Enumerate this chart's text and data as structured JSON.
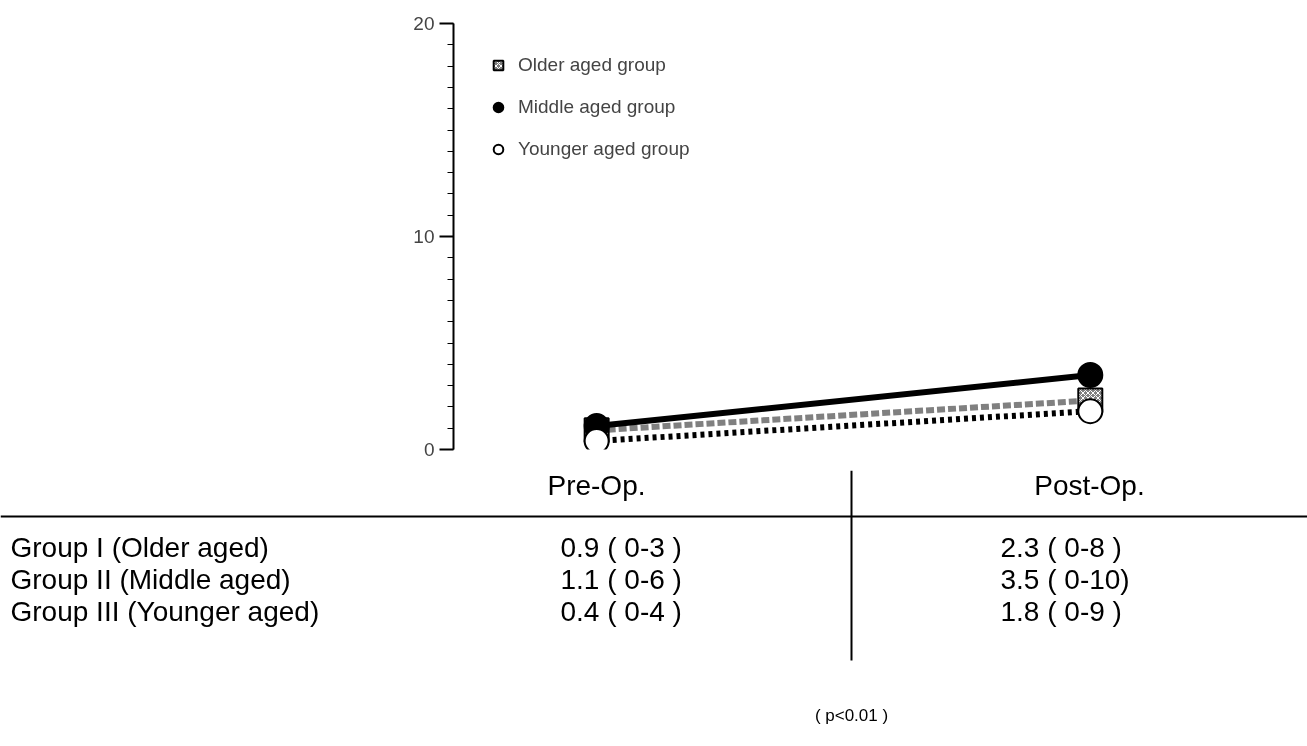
{
  "chart_data": {
    "type": "line",
    "categories": [
      "Pre-Op.",
      "Post-Op."
    ],
    "series": [
      {
        "name": "Older aged group",
        "color": "#808080",
        "marker": "square",
        "line_style": "dashed",
        "values": [
          0.9,
          2.3
        ],
        "value_labels": [
          "0.9  ( 0-3 )",
          "2.3  ( 0-8 )"
        ]
      },
      {
        "name": "Middle aged group",
        "color": "#000000",
        "marker": "circle",
        "line_style": "solid",
        "values": [
          1.1,
          3.5
        ],
        "value_labels": [
          "1.1  ( 0-6 )",
          "3.5  ( 0-10)"
        ]
      },
      {
        "name": "Younger aged group",
        "color": "#000000",
        "marker": "circle",
        "line_style": "dotted",
        "values": [
          0.4,
          1.8
        ],
        "value_labels": [
          "0.4  ( 0-4 )",
          "1.8  ( 0-9 )"
        ]
      }
    ],
    "ylim": [
      0,
      20
    ],
    "yticks": [
      0,
      10,
      20
    ],
    "grid": false,
    "legend": "top left",
    "annotations": [
      "Group I   (Older aged)",
      "Group II  (Middle aged)",
      "Group III (Younger aged)",
      "( p<0.01 )"
    ]
  }
}
